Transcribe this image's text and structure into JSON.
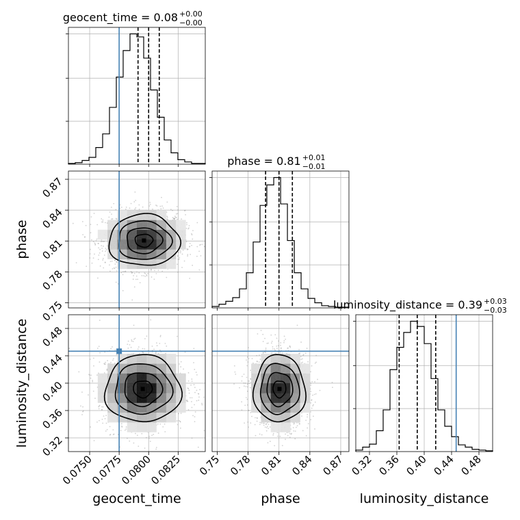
{
  "chart_data": {
    "type": "corner",
    "parameters": [
      {
        "name": "geocent_time",
        "label": "geocent_time",
        "range": [
          0.0732,
          0.0848
        ],
        "ticks": [
          0.075,
          0.0775,
          0.08,
          0.0825
        ],
        "tick_labels": [
          "0.0750",
          "0.0775",
          "0.0800",
          "0.0825"
        ],
        "median": 0.08,
        "quantiles": [
          0.0791,
          0.08,
          0.0809
        ],
        "truth": 0.0775,
        "title": {
          "text": "geocent_time = 0.08",
          "upper": "+0.00",
          "lower": "−0.00"
        },
        "hist": {
          "edges": [
            0.0732,
            0.07378,
            0.07436,
            0.07494,
            0.07552,
            0.0761,
            0.07668,
            0.07726,
            0.07784,
            0.07842,
            0.079,
            0.07958,
            0.08016,
            0.08074,
            0.08132,
            0.0819,
            0.08248,
            0.08306,
            0.08364,
            0.08422,
            0.0848
          ],
          "counts": [
            1,
            2,
            5,
            9,
            22,
            40,
            75,
            115,
            150,
            172,
            168,
            140,
            98,
            62,
            32,
            15,
            6,
            3,
            1,
            1
          ]
        }
      },
      {
        "name": "phase",
        "label": "phase",
        "range": [
          0.745,
          0.878
        ],
        "ticks": [
          0.75,
          0.78,
          0.81,
          0.84,
          0.87
        ],
        "tick_labels": [
          "0.75",
          "0.78",
          "0.81",
          "0.84",
          "0.87"
        ],
        "median": 0.81,
        "quantiles": [
          0.797,
          0.81,
          0.823
        ],
        "truth": null,
        "title": {
          "text": "phase = 0.81",
          "upper": "+0.01",
          "lower": "−0.01"
        },
        "hist": {
          "edges": [
            0.745,
            0.7517,
            0.7583,
            0.765,
            0.7716,
            0.7783,
            0.7849,
            0.7916,
            0.7982,
            0.8049,
            0.8116,
            0.8182,
            0.8249,
            0.8315,
            0.8382,
            0.8448,
            0.8515,
            0.8581,
            0.8648,
            0.8714,
            0.878
          ],
          "counts": [
            2,
            5,
            9,
            14,
            26,
            48,
            90,
            140,
            168,
            178,
            142,
            92,
            48,
            26,
            13,
            7,
            3,
            2,
            1,
            1
          ]
        }
      },
      {
        "name": "luminosity_distance",
        "label": "luminosity_distance",
        "range": [
          0.3,
          0.5
        ],
        "ticks": [
          0.32,
          0.36,
          0.4,
          0.44,
          0.48
        ],
        "tick_labels": [
          "0.32",
          "0.36",
          "0.40",
          "0.44",
          "0.48"
        ],
        "median": 0.39,
        "quantiles": [
          0.3634,
          0.3898,
          0.4168
        ],
        "truth": 0.4467,
        "title": {
          "text": "luminosity_distance = 0.39",
          "upper": "+0.03",
          "lower": "−0.03"
        },
        "hist": {
          "edges": [
            0.3,
            0.31,
            0.32,
            0.33,
            0.34,
            0.35,
            0.36,
            0.37,
            0.38,
            0.39,
            0.4,
            0.41,
            0.42,
            0.43,
            0.44,
            0.45,
            0.46,
            0.47,
            0.48,
            0.49,
            0.5
          ],
          "counts": [
            2,
            6,
            10,
            28,
            56,
            110,
            140,
            160,
            175,
            168,
            145,
            98,
            56,
            34,
            20,
            9,
            6,
            3,
            2,
            1
          ]
        }
      }
    ],
    "panels_2d": [
      {
        "x": "geocent_time",
        "y": "phase",
        "center": [
          0.0796,
          0.8105
        ],
        "spread": [
          0.0015,
          0.0125
        ],
        "truth_x": 0.0775,
        "truth_y": null
      },
      {
        "x": "geocent_time",
        "y": "luminosity_distance",
        "center": [
          0.0795,
          0.3915
        ],
        "spread": [
          0.0016,
          0.0245
        ],
        "truth_x": 0.0775,
        "truth_y": 0.4467
      },
      {
        "x": "phase",
        "y": "luminosity_distance",
        "center": [
          0.8105,
          0.3915
        ],
        "spread": [
          0.0125,
          0.0245
        ],
        "truth_x": null,
        "truth_y": 0.4467
      }
    ],
    "grid": true,
    "colors": {
      "truth": "#4682b4",
      "hist": "#000000",
      "samples": "#999999",
      "grid": "#b0b0b0"
    }
  }
}
